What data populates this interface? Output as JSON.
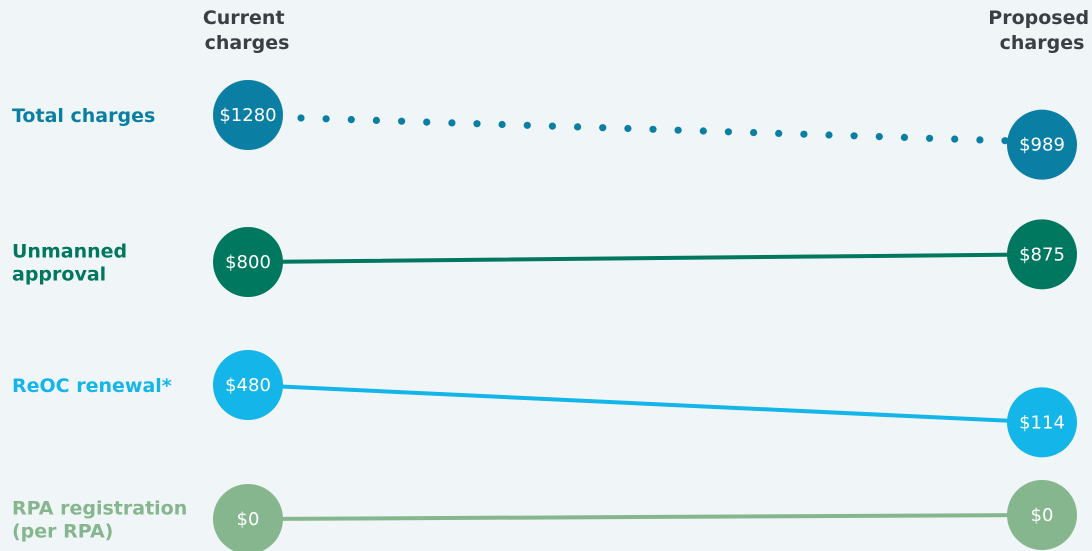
{
  "chart_data": {
    "type": "slope",
    "columns": [
      "Current charges",
      "Proposed charges"
    ],
    "series": [
      {
        "name": "Total charges",
        "current": 1280,
        "proposed": 989,
        "current_label": "$1280",
        "proposed_label": "$989",
        "color": "#0b7fa3",
        "line_style": "dotted"
      },
      {
        "name": "Unmanned approval",
        "current": 800,
        "proposed": 875,
        "current_label": "$800",
        "proposed_label": "$875",
        "color": "#00775f",
        "line_style": "solid"
      },
      {
        "name": "ReOC renewal*",
        "current": 480,
        "proposed": 114,
        "current_label": "$480",
        "proposed_label": "$114",
        "color": "#14b5e8",
        "line_style": "solid"
      },
      {
        "name": "RPA registration (per RPA)",
        "current": 0,
        "proposed": 0,
        "current_label": "$0",
        "proposed_label": "$0",
        "color": "#86b68e",
        "line_style": "solid"
      }
    ]
  }
}
